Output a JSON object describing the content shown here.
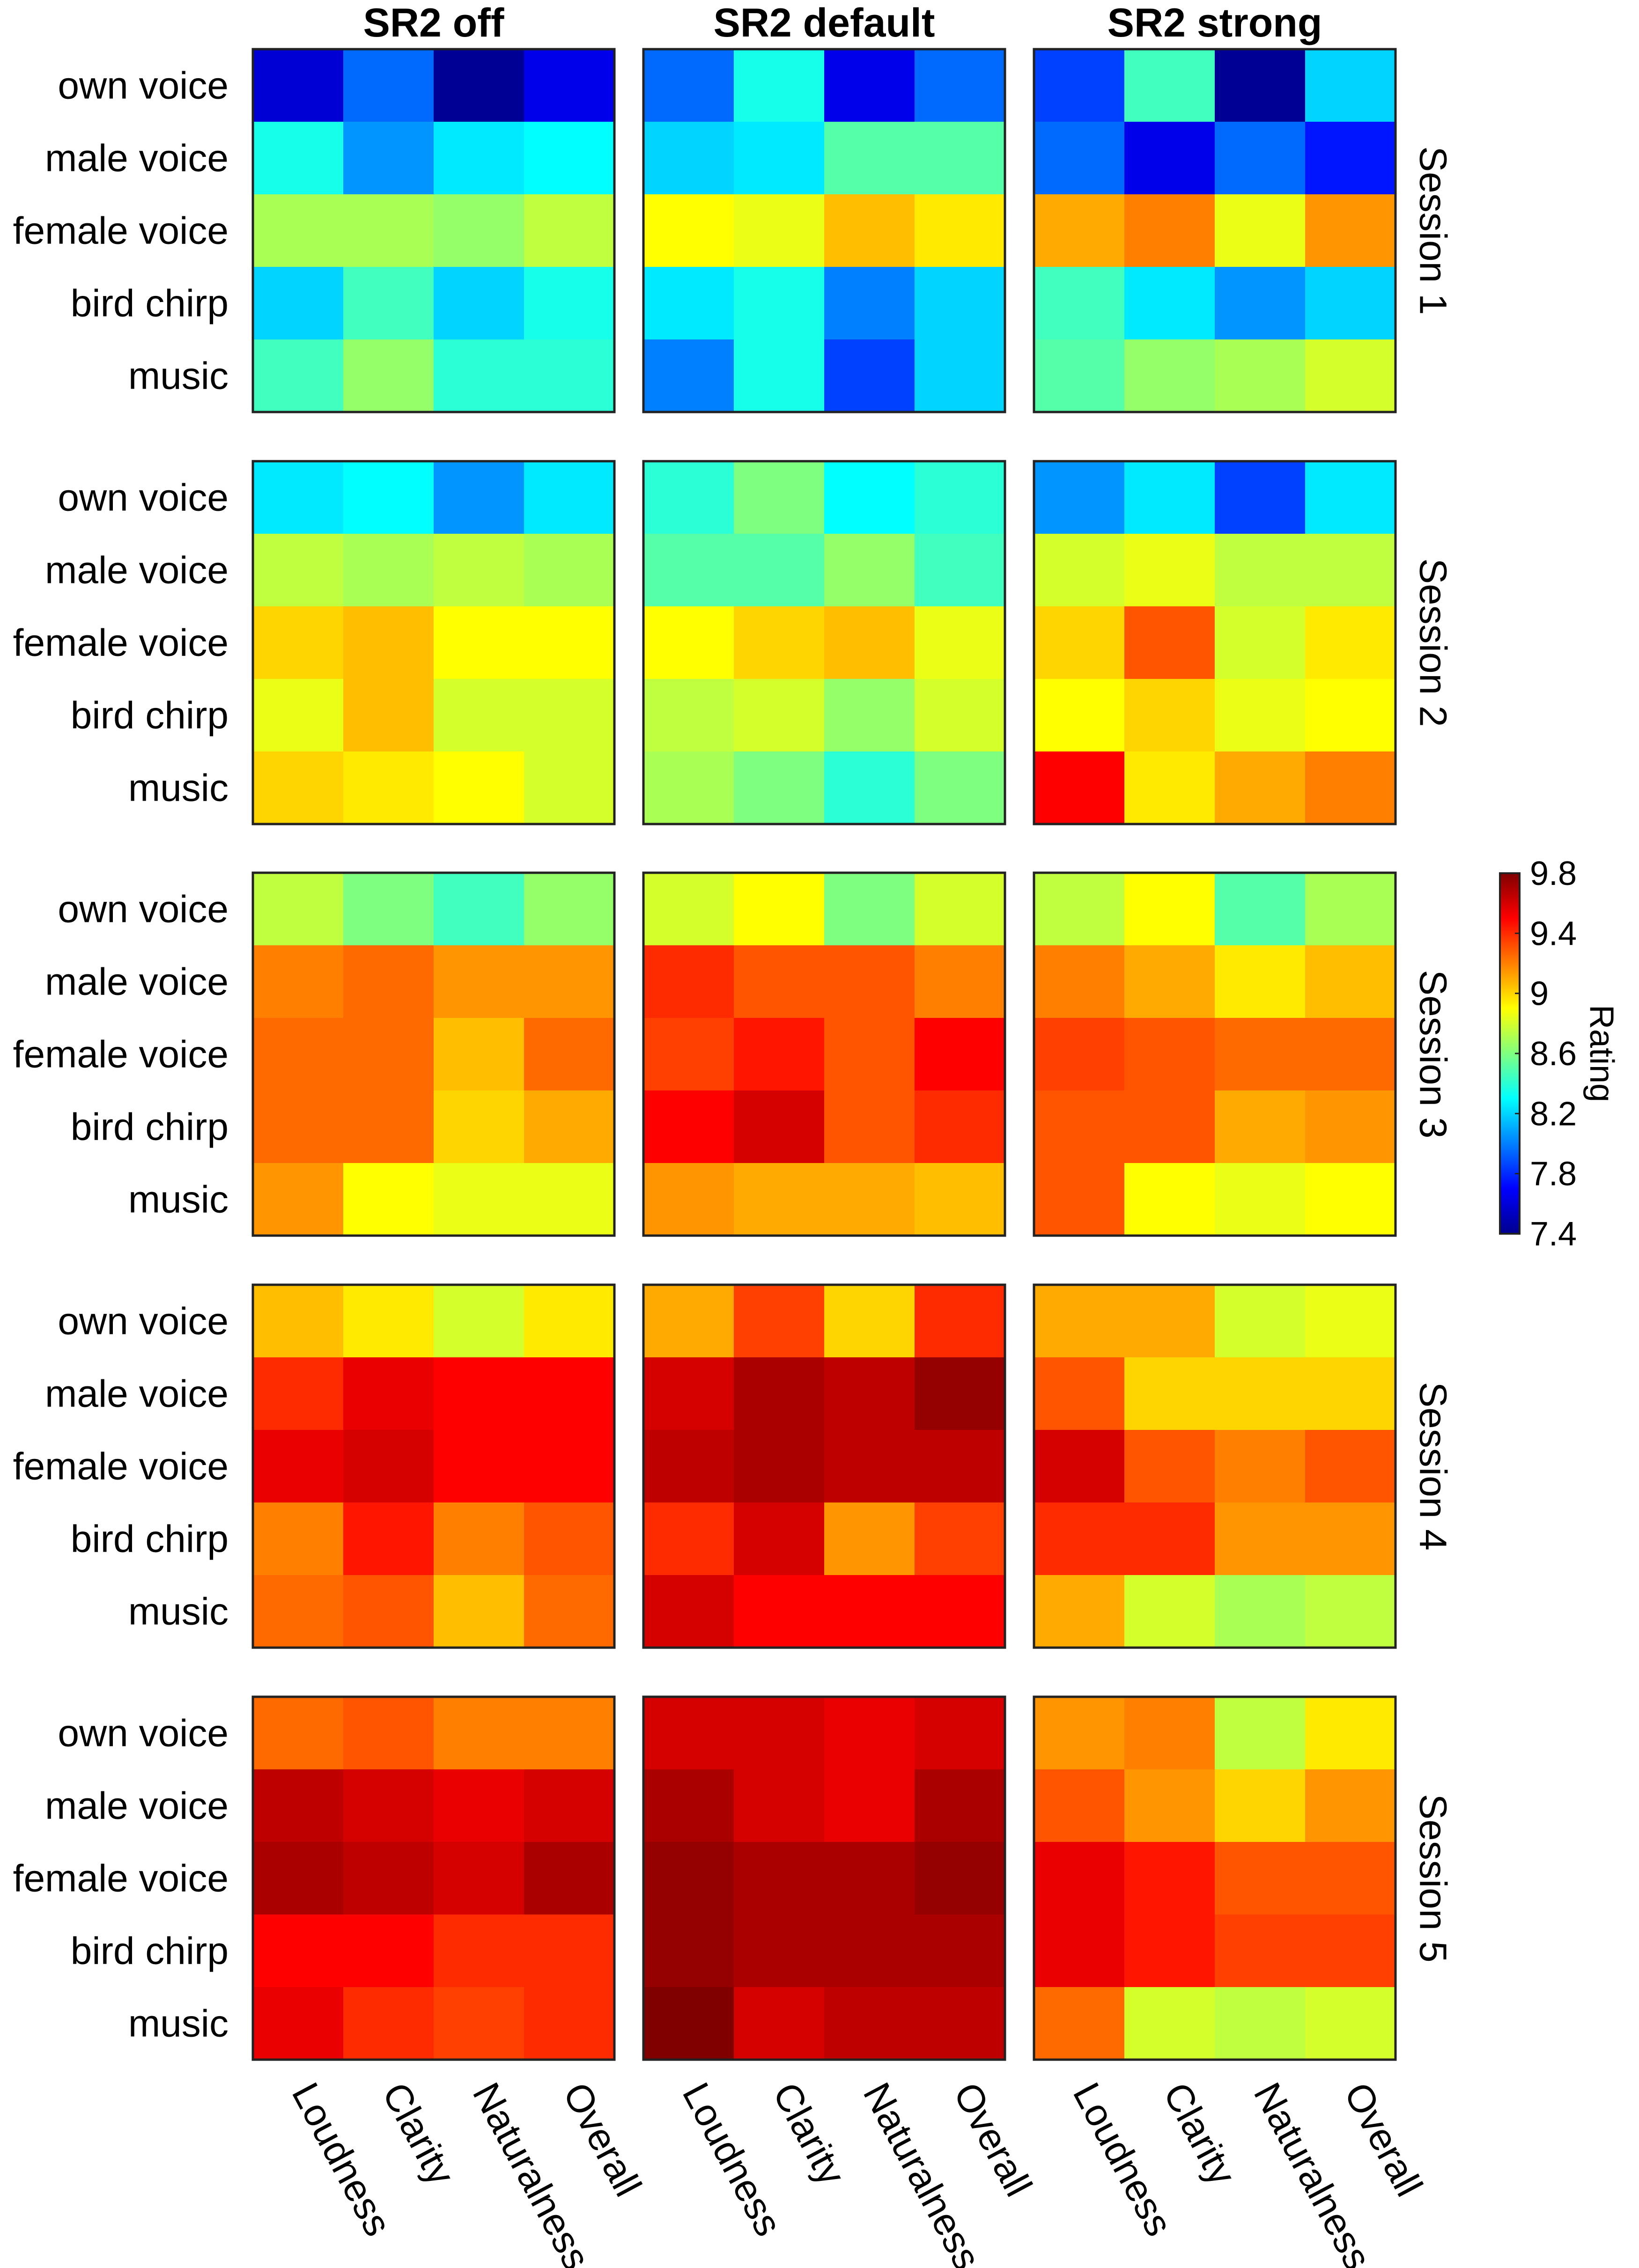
{
  "chart_data": {
    "type": "heatmap",
    "columns": [
      "SR2 off",
      "SR2 default",
      "SR2 strong"
    ],
    "sessions": [
      "Session 1",
      "Session 2",
      "Session 3",
      "Session 4",
      "Session 5"
    ],
    "rows": [
      "own voice",
      "male voice",
      "female voice",
      "bird chirp",
      "music"
    ],
    "metrics": [
      "Loudness",
      "Clarity",
      "Naturalness",
      "Overall"
    ],
    "colorbar": {
      "label": "Rating",
      "min": 7.4,
      "max": 9.8,
      "ticks": [
        "9.8",
        "9.4",
        "9",
        "8.6",
        "8.2",
        "7.8",
        "7.4"
      ],
      "colormap": "jet"
    },
    "values": [
      [
        [
          [
            7.6,
            7.95,
            7.45,
            7.65
          ],
          [
            8.35,
            8.05,
            8.25,
            8.3
          ],
          [
            8.7,
            8.7,
            8.65,
            8.75
          ],
          [
            8.2,
            8.45,
            8.2,
            8.35
          ],
          [
            8.45,
            8.65,
            8.4,
            8.4
          ]
        ],
        [
          [
            7.95,
            8.35,
            7.65,
            7.95
          ],
          [
            8.2,
            8.25,
            8.5,
            8.5
          ],
          [
            8.9,
            8.85,
            9.05,
            8.95
          ],
          [
            8.25,
            8.35,
            8.0,
            8.2
          ],
          [
            8.0,
            8.35,
            7.85,
            8.2
          ]
        ],
        [
          [
            7.85,
            8.45,
            7.45,
            8.2
          ],
          [
            7.95,
            7.65,
            7.95,
            7.75
          ],
          [
            9.1,
            9.2,
            8.85,
            9.15
          ],
          [
            8.45,
            8.25,
            8.05,
            8.2
          ],
          [
            8.5,
            8.65,
            8.7,
            8.8
          ]
        ]
      ],
      [
        [
          [
            8.25,
            8.3,
            8.05,
            8.25
          ],
          [
            8.75,
            8.7,
            8.75,
            8.7
          ],
          [
            9.0,
            9.05,
            8.9,
            8.9
          ],
          [
            8.85,
            9.05,
            8.8,
            8.8
          ],
          [
            9.0,
            8.95,
            8.9,
            8.8
          ]
        ],
        [
          [
            8.4,
            8.6,
            8.3,
            8.4
          ],
          [
            8.5,
            8.5,
            8.65,
            8.45
          ],
          [
            8.9,
            9.0,
            9.05,
            8.85
          ],
          [
            8.75,
            8.8,
            8.65,
            8.8
          ],
          [
            8.7,
            8.6,
            8.4,
            8.6
          ]
        ],
        [
          [
            8.05,
            8.25,
            7.85,
            8.25
          ],
          [
            8.8,
            8.85,
            8.75,
            8.75
          ],
          [
            9.0,
            9.3,
            8.8,
            8.95
          ],
          [
            8.9,
            9.0,
            8.85,
            8.9
          ],
          [
            9.5,
            8.95,
            9.1,
            9.2
          ]
        ]
      ],
      [
        [
          [
            8.75,
            8.6,
            8.45,
            8.65
          ],
          [
            9.2,
            9.25,
            9.15,
            9.15
          ],
          [
            9.25,
            9.25,
            9.05,
            9.25
          ],
          [
            9.25,
            9.25,
            9.0,
            9.1
          ],
          [
            9.15,
            8.9,
            8.85,
            8.85
          ]
        ],
        [
          [
            8.8,
            8.9,
            8.6,
            8.8
          ],
          [
            9.4,
            9.3,
            9.3,
            9.2
          ],
          [
            9.35,
            9.45,
            9.3,
            9.5
          ],
          [
            9.5,
            9.6,
            9.3,
            9.4
          ],
          [
            9.15,
            9.1,
            9.1,
            9.05
          ]
        ],
        [
          [
            8.75,
            8.9,
            8.5,
            8.7
          ],
          [
            9.2,
            9.1,
            8.95,
            9.05
          ],
          [
            9.35,
            9.3,
            9.25,
            9.25
          ],
          [
            9.3,
            9.3,
            9.1,
            9.15
          ],
          [
            9.3,
            8.9,
            8.85,
            8.9
          ]
        ]
      ],
      [
        [
          [
            9.05,
            8.95,
            8.8,
            8.95
          ],
          [
            9.4,
            9.55,
            9.5,
            9.5
          ],
          [
            9.55,
            9.6,
            9.5,
            9.5
          ],
          [
            9.2,
            9.45,
            9.2,
            9.3
          ],
          [
            9.25,
            9.3,
            9.05,
            9.25
          ]
        ],
        [
          [
            9.1,
            9.35,
            9.0,
            9.4
          ],
          [
            9.6,
            9.7,
            9.65,
            9.75
          ],
          [
            9.65,
            9.7,
            9.65,
            9.65
          ],
          [
            9.4,
            9.6,
            9.15,
            9.35
          ],
          [
            9.6,
            9.5,
            9.5,
            9.5
          ]
        ],
        [
          [
            9.1,
            9.1,
            8.8,
            8.85
          ],
          [
            9.3,
            9.0,
            9.0,
            9.0
          ],
          [
            9.6,
            9.3,
            9.2,
            9.3
          ],
          [
            9.4,
            9.4,
            9.15,
            9.15
          ],
          [
            9.1,
            8.8,
            8.7,
            8.75
          ]
        ]
      ],
      [
        [
          [
            9.25,
            9.3,
            9.2,
            9.2
          ],
          [
            9.65,
            9.6,
            9.55,
            9.6
          ],
          [
            9.7,
            9.65,
            9.6,
            9.7
          ],
          [
            9.5,
            9.5,
            9.4,
            9.4
          ],
          [
            9.55,
            9.4,
            9.35,
            9.4
          ]
        ],
        [
          [
            9.6,
            9.6,
            9.55,
            9.6
          ],
          [
            9.7,
            9.6,
            9.55,
            9.7
          ],
          [
            9.75,
            9.7,
            9.7,
            9.75
          ],
          [
            9.75,
            9.7,
            9.7,
            9.7
          ],
          [
            9.8,
            9.6,
            9.65,
            9.65
          ]
        ],
        [
          [
            9.15,
            9.2,
            8.75,
            8.95
          ],
          [
            9.3,
            9.15,
            9.0,
            9.15
          ],
          [
            9.55,
            9.45,
            9.3,
            9.3
          ],
          [
            9.55,
            9.45,
            9.35,
            9.35
          ],
          [
            9.25,
            8.8,
            8.75,
            8.8
          ]
        ]
      ]
    ]
  }
}
